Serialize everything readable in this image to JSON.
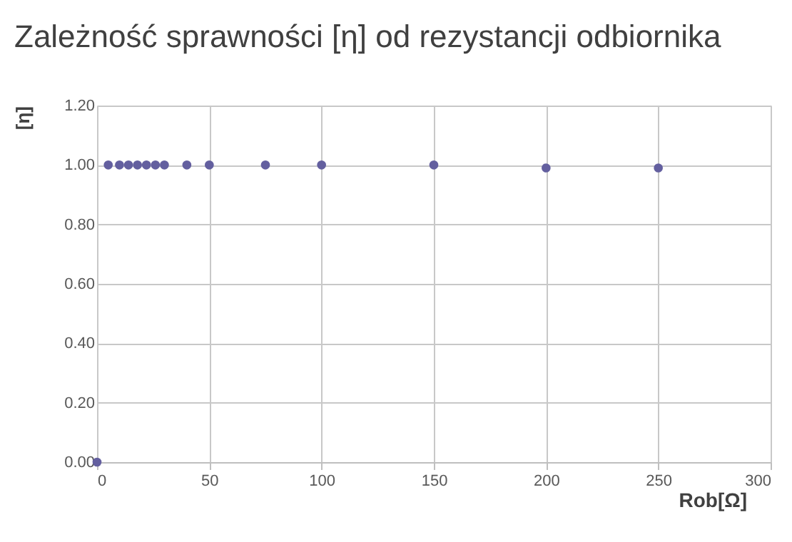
{
  "chart_data": {
    "type": "scatter",
    "title": "Zależność sprawności [η] od rezystancji odbiornika",
    "xlabel": "Rob[Ω]",
    "ylabel": "[η]",
    "x": [
      0,
      5,
      10,
      14,
      18,
      22,
      26,
      30,
      40,
      50,
      75,
      100,
      150,
      200,
      250
    ],
    "series": [
      {
        "color": "#635f9f",
        "values": [
          0,
          1.0,
          1.0,
          1.0,
          1.0,
          1.0,
          1.0,
          1.0,
          1.0,
          1.0,
          1.0,
          1.0,
          1.0,
          0.99,
          0.99
        ]
      }
    ],
    "xlim": [
      0,
      300
    ],
    "xticks": [
      0,
      50,
      100,
      150,
      200,
      250,
      300
    ],
    "ylim": [
      0,
      1.2
    ],
    "yticks": [
      {
        "value": 0,
        "label": "0.00"
      },
      {
        "value": 0.2,
        "label": "0.20"
      },
      {
        "value": 0.4,
        "label": "0.40"
      },
      {
        "value": 0.6,
        "label": "0.60"
      },
      {
        "value": 0.8,
        "label": "0.80"
      },
      {
        "value": 1.0,
        "label": "1.00"
      },
      {
        "value": 1.2,
        "label": "1.20"
      }
    ],
    "grid": true,
    "marker": "circle"
  }
}
